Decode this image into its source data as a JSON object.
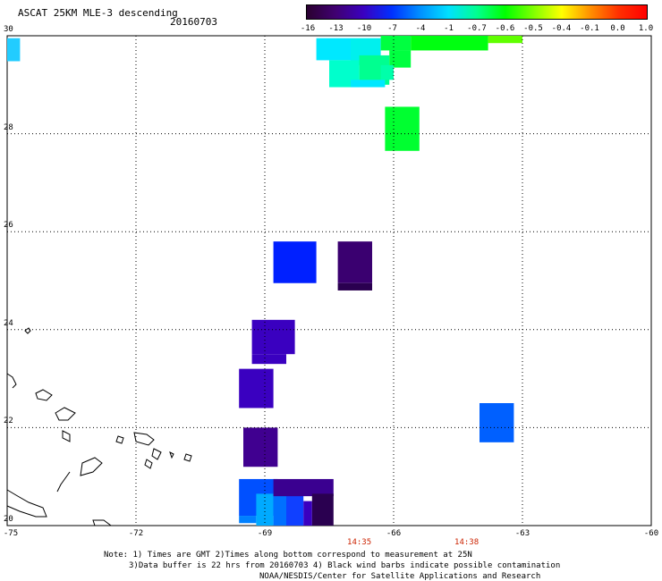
{
  "header": {
    "title": "ASCAT 25KM MLE-3 descending",
    "date": "20160703"
  },
  "colorbar": {
    "labels": [
      "-16",
      "-13",
      "-10",
      "-7",
      "-4",
      "-1",
      "-0.7",
      "-0.6",
      "-0.5",
      "-0.4",
      "-0.1",
      "0.0",
      "1.0"
    ],
    "stops": [
      "#2a0030",
      "#400070",
      "#3a00c0",
      "#0030ff",
      "#0090ff",
      "#00e0ff",
      "#00ff90",
      "#00ff00",
      "#80ff00",
      "#ffff00",
      "#ff9000",
      "#ff3000",
      "#ff0000"
    ]
  },
  "axes": {
    "lat_ticks": [
      "30",
      "28",
      "26",
      "24",
      "22",
      "20"
    ],
    "lon_ticks": [
      "-75",
      "-72",
      "-69",
      "-66",
      "-63",
      "-60"
    ],
    "lat_range": [
      20,
      30
    ],
    "lon_range": [
      -75,
      -60
    ]
  },
  "times": [
    {
      "label": "14:35",
      "lon": -66.8
    },
    {
      "label": "14:38",
      "lon": -64.3
    }
  ],
  "notes": {
    "line1": "Note: 1) Times are GMT 2)Times along bottom correspond to measurement at 25N",
    "line2": "3)Data buffer is 22 hrs from 20160703 4) Black wind barbs indicate possible contamination",
    "line3": "NOAA/NESDIS/Center for Satellite Applications and Research"
  },
  "swath_cells": [
    {
      "lon0": -75.0,
      "lon1": -74.7,
      "lat0": 29.48,
      "lat1": 29.95,
      "color": "#22ccff"
    },
    {
      "lon0": -67.8,
      "lon1": -67.0,
      "lat0": 29.5,
      "lat1": 29.95,
      "color": "#00e8ff"
    },
    {
      "lon0": -67.0,
      "lon1": -66.3,
      "lat0": 29.4,
      "lat1": 29.95,
      "color": "#00f0ee"
    },
    {
      "lon0": -66.3,
      "lon1": -65.6,
      "lat0": 29.7,
      "lat1": 30.0,
      "color": "#00ff40"
    },
    {
      "lon0": -65.6,
      "lon1": -63.8,
      "lat0": 29.7,
      "lat1": 30.0,
      "color": "#00ff10"
    },
    {
      "lon0": -63.8,
      "lon1": -63.0,
      "lat0": 29.85,
      "lat1": 30.0,
      "color": "#60ff00"
    },
    {
      "lon0": -67.5,
      "lon1": -66.8,
      "lat0": 28.95,
      "lat1": 29.5,
      "color": "#00ffcc"
    },
    {
      "lon0": -66.8,
      "lon1": -66.1,
      "lat0": 29.0,
      "lat1": 29.6,
      "color": "#00ff90"
    },
    {
      "lon0": -66.1,
      "lon1": -65.6,
      "lat0": 29.35,
      "lat1": 29.7,
      "color": "#00ff40"
    },
    {
      "lon0": -66.3,
      "lon1": -66.0,
      "lat0": 29.1,
      "lat1": 29.4,
      "color": "#00ffaa"
    },
    {
      "lon0": -67.0,
      "lon1": -66.2,
      "lat0": 28.95,
      "lat1": 29.1,
      "color": "#00e8ff"
    },
    {
      "lon0": -66.2,
      "lon1": -65.4,
      "lat0": 27.65,
      "lat1": 28.55,
      "color": "#00ff30"
    },
    {
      "lon0": -68.8,
      "lon1": -67.8,
      "lat0": 24.95,
      "lat1": 25.8,
      "color": "#0020ff"
    },
    {
      "lon0": -67.3,
      "lon1": -66.5,
      "lat0": 24.95,
      "lat1": 25.8,
      "color": "#3a0070"
    },
    {
      "lon0": -67.3,
      "lon1": -66.5,
      "lat0": 24.8,
      "lat1": 24.95,
      "color": "#2a0050"
    },
    {
      "lon0": -69.3,
      "lon1": -68.3,
      "lat0": 23.5,
      "lat1": 24.2,
      "color": "#3a00c0"
    },
    {
      "lon0": -69.3,
      "lon1": -68.5,
      "lat0": 23.3,
      "lat1": 23.5,
      "color": "#3a00c0"
    },
    {
      "lon0": -69.6,
      "lon1": -68.8,
      "lat0": 22.4,
      "lat1": 23.2,
      "color": "#3a00c0"
    },
    {
      "lon0": -64.0,
      "lon1": -63.2,
      "lat0": 21.7,
      "lat1": 22.5,
      "color": "#0060ff"
    },
    {
      "lon0": -69.5,
      "lon1": -68.7,
      "lat0": 21.2,
      "lat1": 22.0,
      "color": "#400090"
    },
    {
      "lon0": -69.6,
      "lon1": -68.7,
      "lat0": 20.2,
      "lat1": 20.95,
      "color": "#0050ff"
    },
    {
      "lon0": -69.6,
      "lon1": -69.2,
      "lat0": 20.05,
      "lat1": 20.2,
      "color": "#0080ff"
    },
    {
      "lon0": -69.2,
      "lon1": -68.8,
      "lat0": 20.0,
      "lat1": 20.65,
      "color": "#00aaff"
    },
    {
      "lon0": -68.8,
      "lon1": -68.5,
      "lat0": 20.0,
      "lat1": 20.7,
      "color": "#0070ff"
    },
    {
      "lon0": -68.5,
      "lon1": -68.1,
      "lat0": 20.0,
      "lat1": 20.65,
      "color": "#1040ff"
    },
    {
      "lon0": -68.1,
      "lon1": -67.9,
      "lat0": 20.0,
      "lat1": 20.5,
      "color": "#3a00c0"
    },
    {
      "lon0": -68.8,
      "lon1": -67.4,
      "lat0": 20.6,
      "lat1": 20.95,
      "color": "#3a0090"
    },
    {
      "lon0": -67.9,
      "lon1": -67.4,
      "lat0": 20.0,
      "lat1": 20.65,
      "color": "#2a0050"
    }
  ]
}
